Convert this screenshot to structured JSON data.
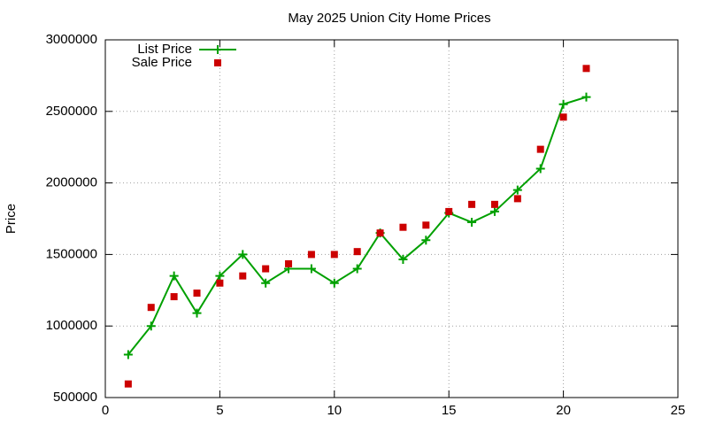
{
  "chart_data": {
    "type": "line",
    "title": "May 2025 Union City Home Prices",
    "y_label": "Price",
    "x": [
      1,
      2,
      3,
      4,
      5,
      6,
      7,
      8,
      9,
      10,
      11,
      12,
      13,
      14,
      15,
      16,
      17,
      18,
      19,
      20,
      21
    ],
    "series": [
      {
        "name": "List Price",
        "color": "#00a000",
        "line": true,
        "marker": "plus",
        "values": [
          800000,
          1000000,
          1350000,
          1090000,
          1350000,
          1500000,
          1300000,
          1400000,
          1400000,
          1300000,
          1400000,
          1650000,
          1465000,
          1600000,
          1790000,
          1725000,
          1800000,
          1950000,
          2100000,
          2550000,
          2600000
        ]
      },
      {
        "name": "Sale Price",
        "color": "#cc0000",
        "line": false,
        "marker": "square",
        "values": [
          595000,
          1130000,
          1205000,
          1230000,
          1300000,
          1350000,
          1400000,
          1435000,
          1500000,
          1500000,
          1520000,
          1650000,
          1690000,
          1705000,
          1800000,
          1850000,
          1850000,
          1890000,
          2235000,
          2460000,
          2800000
        ]
      }
    ],
    "xlim": [
      0,
      25
    ],
    "xticks": [
      0,
      5,
      10,
      15,
      20,
      25
    ],
    "ylim": [
      500000,
      3000000
    ],
    "yticks": [
      500000,
      1000000,
      1500000,
      2000000,
      2500000,
      3000000
    ],
    "grid": true,
    "legend": "top-left"
  }
}
